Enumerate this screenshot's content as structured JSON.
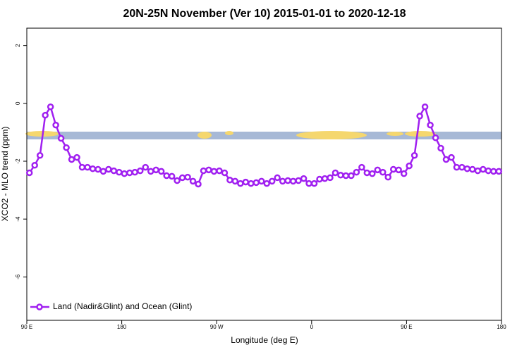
{
  "chart_data": {
    "type": "line",
    "title": "20N-25N November (Ver 10)   2015-01-01 to 2020-12-18",
    "x_label": "Longitude (deg E)",
    "y_label": "XCO2 - MLO trend (ppm)",
    "xlim": [
      90,
      540
    ],
    "ylim": [
      -7.5,
      2.6
    ],
    "xticks": [
      {
        "value": 90,
        "label": "90 E"
      },
      {
        "value": 180,
        "label": "180"
      },
      {
        "value": 270,
        "label": "90 W"
      },
      {
        "value": 360,
        "label": "0"
      },
      {
        "value": 450,
        "label": "90 E"
      },
      {
        "value": 540,
        "label": "180"
      }
    ],
    "yticks": [
      2,
      0,
      -2,
      -4,
      -6
    ],
    "legend": "bottomleft",
    "series": [
      {
        "name": "Land (Nadir&Glint) and Ocean (Glint)",
        "color": "#a020f0",
        "x": [
          92.5,
          97.5,
          102.5,
          107.5,
          112.5,
          117.5,
          122.5,
          127.5,
          132.5,
          137.5,
          142.5,
          147.5,
          152.5,
          157.5,
          162.5,
          167.5,
          172.5,
          177.5,
          182.5,
          187.5,
          192.5,
          197.5,
          202.5,
          207.5,
          212.5,
          217.5,
          222.5,
          227.5,
          232.5,
          237.5,
          242.5,
          247.5,
          252.5,
          257.5,
          262.5,
          267.5,
          272.5,
          277.5,
          282.5,
          287.5,
          292.5,
          297.5,
          302.5,
          307.5,
          312.5,
          317.5,
          322.5,
          327.5,
          332.5,
          337.5,
          342.5,
          347.5,
          352.5,
          357.5,
          362.5,
          367.5,
          372.5,
          377.5,
          382.5,
          387.5,
          392.5,
          397.5,
          402.5,
          407.5,
          412.5,
          417.5,
          422.5,
          427.5,
          432.5,
          437.5,
          442.5,
          447.5,
          452.5,
          457.5,
          462.5,
          467.5,
          472.5,
          477.5,
          482.5,
          487.5,
          492.5,
          497.5,
          502.5,
          507.5,
          512.5,
          517.5,
          522.5,
          527.5,
          532.5,
          537.5
        ],
        "values": [
          -2.4,
          -2.14,
          -1.8,
          -0.41,
          -0.12,
          -0.75,
          -1.21,
          -1.53,
          -1.94,
          -1.87,
          -2.21,
          -2.21,
          -2.26,
          -2.28,
          -2.35,
          -2.28,
          -2.33,
          -2.38,
          -2.43,
          -2.4,
          -2.38,
          -2.33,
          -2.21,
          -2.35,
          -2.3,
          -2.35,
          -2.5,
          -2.52,
          -2.67,
          -2.57,
          -2.55,
          -2.69,
          -2.79,
          -2.33,
          -2.3,
          -2.35,
          -2.33,
          -2.4,
          -2.65,
          -2.69,
          -2.77,
          -2.72,
          -2.77,
          -2.74,
          -2.69,
          -2.77,
          -2.69,
          -2.57,
          -2.69,
          -2.67,
          -2.69,
          -2.67,
          -2.6,
          -2.77,
          -2.77,
          -2.62,
          -2.6,
          -2.57,
          -2.4,
          -2.48,
          -2.5,
          -2.5,
          -2.38,
          -2.21,
          -2.4,
          -2.43,
          -2.3,
          -2.38,
          -2.55,
          -2.28,
          -2.3,
          -2.43,
          -2.16,
          -1.8,
          -0.44,
          -0.12,
          -0.75,
          -1.19,
          -1.55,
          -1.94,
          -1.87,
          -2.21,
          -2.21,
          -2.26,
          -2.28,
          -2.33,
          -2.28,
          -2.33,
          -2.35,
          -2.35
        ]
      }
    ]
  }
}
